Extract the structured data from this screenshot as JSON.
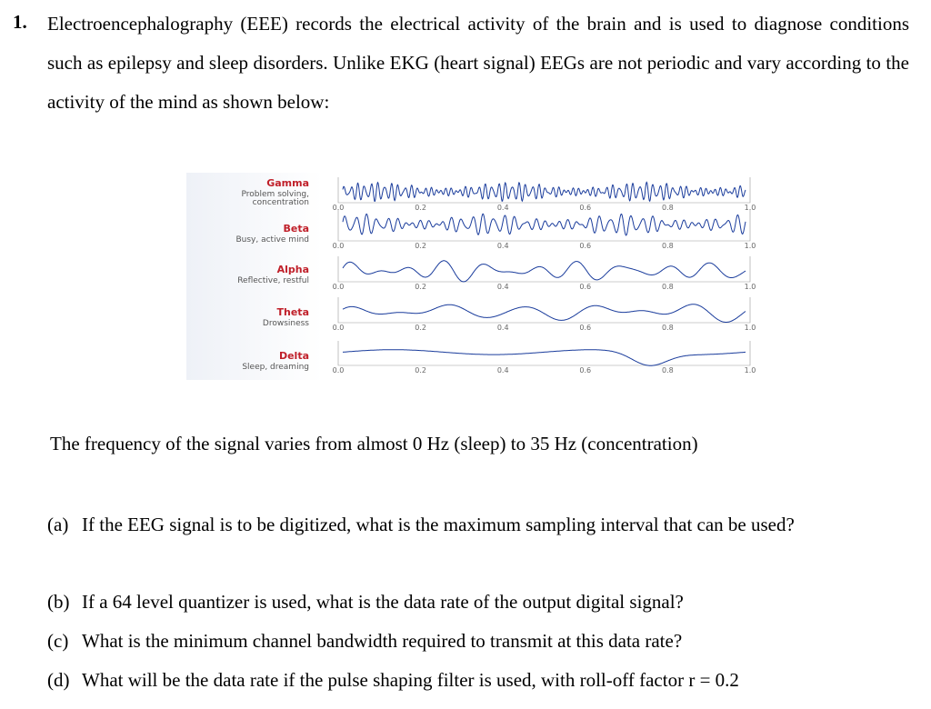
{
  "question": {
    "number": "1.",
    "paragraph": "Electroencephalography (EEE) records the electrical activity of the brain and is used to diagnose conditions such as epilepsy and sleep disorders. Unlike EKG (heart signal) EEGs are not periodic and vary according to the activity of the mind as shown below:"
  },
  "figure": {
    "bands": [
      {
        "name": "Gamma",
        "description": "Problem solving, concentration"
      },
      {
        "name": "Beta",
        "description": "Busy, active mind"
      },
      {
        "name": "Alpha",
        "description": "Reflective, restful"
      },
      {
        "name": "Theta",
        "description": "Drowsiness"
      },
      {
        "name": "Delta",
        "description": "Sleep, dreaming"
      }
    ],
    "ticks": [
      "0.0",
      "0.2",
      "0.4",
      "0.6",
      "0.8",
      "1.0"
    ]
  },
  "frequency_note": "The frequency of the signal varies from almost  0 Hz (sleep) to 35 Hz (concentration)",
  "parts": [
    {
      "label": "(a)",
      "text": "If the EEG signal is to be digitized, what is the maximum sampling interval that can be used?"
    },
    {
      "label": "(b)",
      "text": "If a 64 level quantizer is used, what is the data rate of the output digital signal?"
    },
    {
      "label": "(c)",
      "text": "What is the minimum channel bandwidth required to transmit at this data rate?"
    },
    {
      "label": "(d)",
      "text": "What will be the data rate if the pulse shaping filter is used, with roll-off factor r = 0.2"
    }
  ]
}
